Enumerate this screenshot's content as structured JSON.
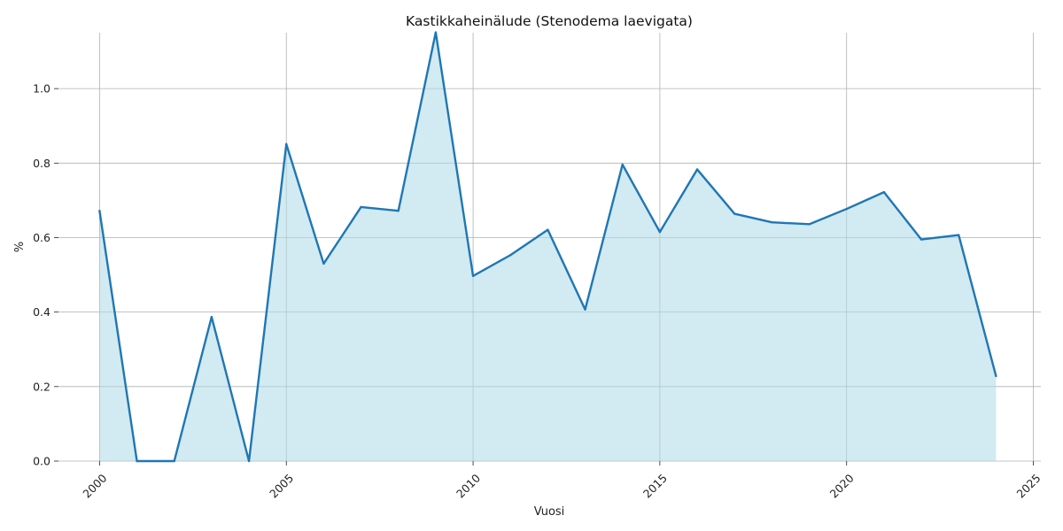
{
  "chart_data": {
    "type": "area",
    "title": "Kastikkaheinälude (Stenodema laevigata)",
    "xlabel": "Vuosi",
    "ylabel": "%",
    "x": [
      2000,
      2001,
      2002,
      2003,
      2004,
      2005,
      2006,
      2007,
      2008,
      2009,
      2010,
      2011,
      2012,
      2013,
      2014,
      2015,
      2016,
      2017,
      2018,
      2019,
      2020,
      2021,
      2022,
      2023,
      2024
    ],
    "y": [
      0.672,
      0.0,
      0.0,
      0.387,
      0.0,
      0.851,
      0.53,
      0.682,
      0.672,
      1.151,
      0.497,
      0.553,
      0.621,
      0.407,
      0.796,
      0.615,
      0.783,
      0.664,
      0.641,
      0.636,
      0.677,
      0.722,
      0.595,
      0.607,
      0.228
    ],
    "xlim": [
      1998.9,
      2025.2
    ],
    "ylim": [
      0,
      1.15
    ],
    "xticks": [
      "2000",
      "2005",
      "2010",
      "2015",
      "2020",
      "2025"
    ],
    "yticks": [
      "0.0",
      "0.2",
      "0.4",
      "0.6",
      "0.8",
      "1.0"
    ],
    "grid": true,
    "colors": {
      "line": "#1f77b4",
      "fill": "#add8e6",
      "grid": "#b0b0b0"
    }
  }
}
